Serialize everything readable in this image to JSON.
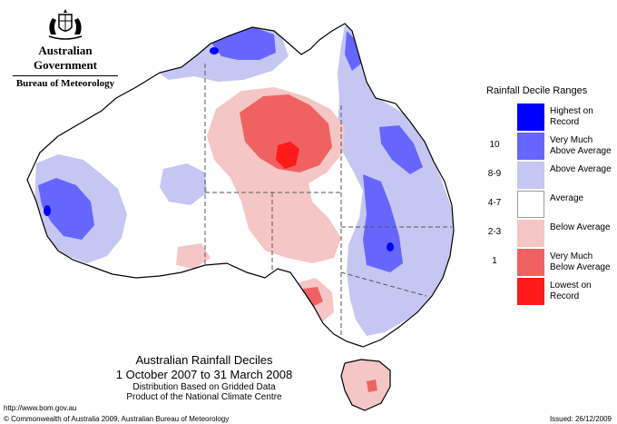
{
  "government": {
    "name": "Australian Government",
    "bureau": "Bureau of Meteorology",
    "crest_icon": "coat-of-arms-icon"
  },
  "map": {
    "title": "Australian Rainfall Deciles",
    "period": "1 October 2007 to 31 March 2008",
    "note_line1": "Distribution Based on Gridded Data",
    "note_line2": "Product of the National Climate Centre",
    "region": "Australia",
    "colors": {
      "land": "#ffffff",
      "outline": "#000000",
      "highest": "#0000ff",
      "very_much_above": "#6666ff",
      "above": "#c6c6f2",
      "average": "#ffffff",
      "below": "#f5c6c6",
      "very_much_below": "#f06262",
      "lowest": "#ff1a1a"
    }
  },
  "legend": {
    "title": "Rainfall Decile Ranges",
    "items": [
      {
        "range": "",
        "label": "Highest on Record",
        "color": "#0000ff"
      },
      {
        "range": "10",
        "label": "Very Much Above Average",
        "color": "#6666ff"
      },
      {
        "range": "8-9",
        "label": "Above Average",
        "color": "#c6c6f2"
      },
      {
        "range": "4-7",
        "label": "Average",
        "color": "#ffffff"
      },
      {
        "range": "2-3",
        "label": "Below Average",
        "color": "#f5c6c6"
      },
      {
        "range": "1",
        "label": "Very Much Below Average",
        "color": "#f06262"
      },
      {
        "range": "",
        "label": "Lowest on Record",
        "color": "#ff1a1a"
      }
    ]
  },
  "footer": {
    "url": "http://www.bom.gov.au",
    "copyright": "© Commonwealth of Australia 2009, Australian Bureau of Meteorology",
    "issued": "Issued: 26/12/2009"
  }
}
